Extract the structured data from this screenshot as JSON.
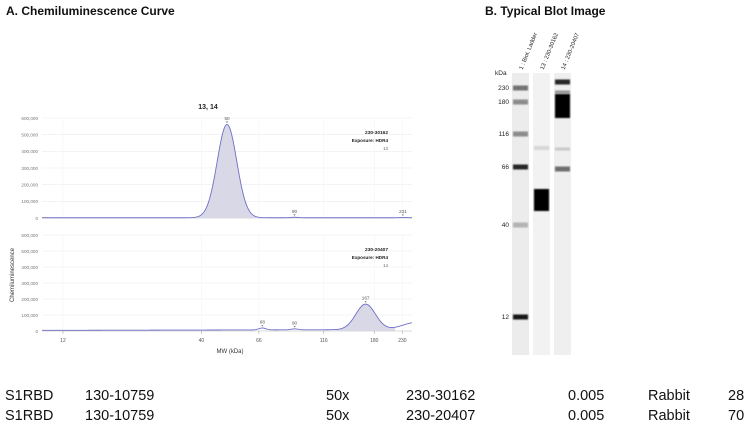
{
  "panel_a": {
    "title": "A. Chemiluminescence Curve"
  },
  "panel_b": {
    "title": "B.  Typical Blot Image",
    "unit_label": "kDa",
    "lane_labels": [
      "1 : Biot. Ladder",
      "13 : 230-30162",
      "14 : 230-20407"
    ],
    "ladder_kda": [
      "230",
      "180",
      "116",
      "66",
      "40",
      "12"
    ]
  },
  "chart_data": {
    "type": "line",
    "title": "13, 14",
    "xlabel": "MW (kDa)",
    "ylabel": "Chemiluminescence",
    "x_ticks": [
      "12",
      "40",
      "66",
      "116",
      "180",
      "230"
    ],
    "panels": [
      {
        "name": "230-30162",
        "exposure": "Exposure: HDR4",
        "lane": "13",
        "ylim": [
          0,
          600000
        ],
        "y_ticks": [
          "0",
          "100,000",
          "200,000",
          "300,000",
          "400,000",
          "500,000",
          "600,000"
        ],
        "peaks": [
          {
            "label": "50",
            "x": 50,
            "y": 560000
          },
          {
            "label": "90",
            "x": 90,
            "y": 3000
          },
          {
            "label": "231",
            "x": 231,
            "y": 2000
          }
        ]
      },
      {
        "name": "230-20407",
        "exposure": "Exposure: HDR4",
        "lane": "14",
        "ylim": [
          0,
          600000
        ],
        "y_ticks": [
          "0",
          "100,000",
          "200,000",
          "300,000",
          "400,000",
          "500,000",
          "600,000"
        ],
        "peaks": [
          {
            "label": "68",
            "x": 68,
            "y": 12000
          },
          {
            "label": "90",
            "x": 90,
            "y": 6000
          },
          {
            "label": "167",
            "x": 167,
            "y": 160000
          }
        ]
      }
    ]
  },
  "table": {
    "rows": [
      [
        "S1RBD",
        "130-10759",
        "50x",
        "230-30162",
        "0.005",
        "Rabbit",
        "28"
      ],
      [
        "S1RBD",
        "130-10759",
        "50x",
        "230-20407",
        "0.005",
        "Rabbit",
        "70"
      ]
    ]
  }
}
